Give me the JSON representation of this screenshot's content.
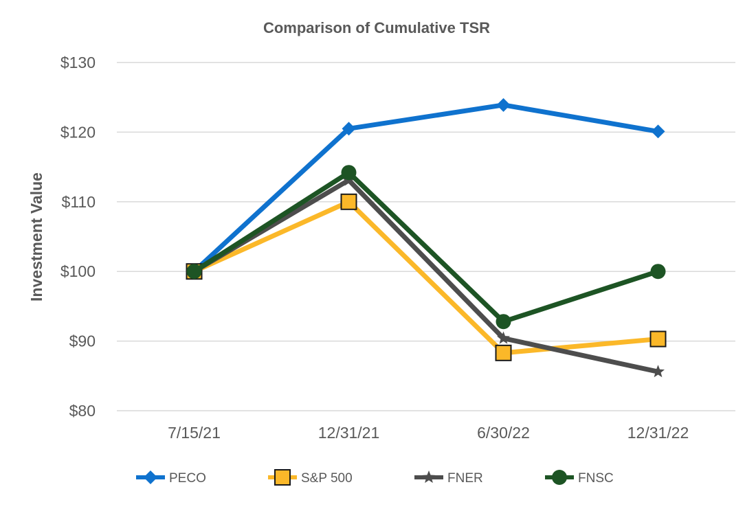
{
  "chart_data": {
    "type": "line",
    "title": "Comparison of Cumulative TSR",
    "xlabel": "",
    "ylabel": "Investment Value",
    "categories": [
      "7/15/21",
      "12/31/21",
      "6/30/22",
      "12/31/22"
    ],
    "ylim": [
      80,
      130
    ],
    "yticks": [
      80,
      90,
      100,
      110,
      120,
      130
    ],
    "ytick_labels": [
      "$80",
      "$90",
      "$100",
      "$110",
      "$120",
      "$130"
    ],
    "grid": true,
    "legend_position": "bottom",
    "series": [
      {
        "name": "PECO",
        "values": [
          100,
          120.5,
          123.9,
          120.1
        ],
        "color": "#0F72CE",
        "marker": "diamond"
      },
      {
        "name": "S&P 500",
        "values": [
          100,
          110.0,
          88.3,
          90.3
        ],
        "color": "#FBB829",
        "marker": "square"
      },
      {
        "name": "FNER",
        "values": [
          100,
          113.1,
          90.4,
          85.6
        ],
        "color": "#4D4D4D",
        "marker": "star"
      },
      {
        "name": "FNSC",
        "values": [
          100,
          114.2,
          92.8,
          100.0
        ],
        "color": "#1D5424",
        "marker": "circle"
      }
    ]
  }
}
